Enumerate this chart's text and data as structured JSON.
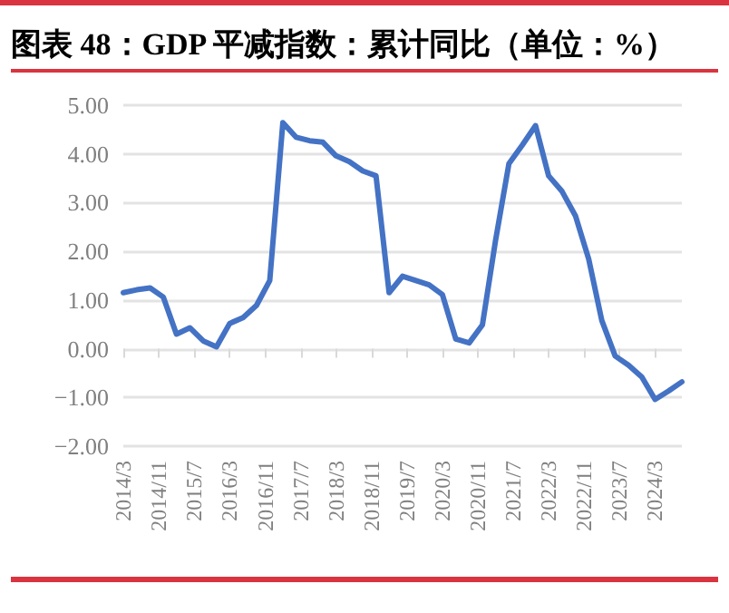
{
  "chart_data": {
    "type": "line",
    "title": "图表 48：GDP 平减指数：累计同比（单位：%）",
    "x": [
      "2014-03",
      "2014-06",
      "2014-09",
      "2014-12",
      "2015-03",
      "2015-06",
      "2015-09",
      "2015-12",
      "2016-03",
      "2016-06",
      "2016-09",
      "2016-12",
      "2017-03",
      "2017-06",
      "2017-09",
      "2017-12",
      "2018-03",
      "2018-06",
      "2018-09",
      "2018-12",
      "2019-03",
      "2019-06",
      "2019-09",
      "2019-12",
      "2020-03",
      "2020-06",
      "2020-09",
      "2020-12",
      "2021-03",
      "2021-06",
      "2021-09",
      "2021-12",
      "2022-03",
      "2022-06",
      "2022-09",
      "2022-12",
      "2023-03",
      "2023-06",
      "2023-09",
      "2023-12",
      "2024-03",
      "2024-06",
      "2024-09"
    ],
    "series": [
      {
        "color": "#4472c4",
        "values": [
          1.15,
          1.21,
          1.25,
          1.06,
          0.3,
          0.43,
          0.16,
          0.04,
          0.52,
          0.64,
          0.89,
          1.4,
          4.64,
          4.34,
          4.27,
          4.24,
          3.96,
          3.84,
          3.65,
          3.55,
          1.15,
          1.49,
          1.4,
          1.31,
          1.11,
          0.2,
          0.12,
          0.49,
          2.22,
          3.8,
          4.18,
          4.58,
          3.55,
          3.23,
          2.73,
          1.84,
          0.58,
          -0.15,
          -0.34,
          -0.58,
          -1.04,
          -0.87,
          -0.68
        ]
      }
    ],
    "xlim": [
      "2014-03",
      "2024-09"
    ],
    "xticks": [
      {
        "value": "2014-03",
        "label": "2014/3"
      },
      {
        "value": "2014-11",
        "label": "2014/11"
      },
      {
        "value": "2015-07",
        "label": "2015/7"
      },
      {
        "value": "2016-03",
        "label": "2016/3"
      },
      {
        "value": "2016-11",
        "label": "2016/11"
      },
      {
        "value": "2017-07",
        "label": "2017/7"
      },
      {
        "value": "2018-03",
        "label": "2018/3"
      },
      {
        "value": "2018-11",
        "label": "2018/11"
      },
      {
        "value": "2019-07",
        "label": "2019/7"
      },
      {
        "value": "2020-03",
        "label": "2020/3"
      },
      {
        "value": "2020-11",
        "label": "2020/11"
      },
      {
        "value": "2021-07",
        "label": "2021/7"
      },
      {
        "value": "2022-03",
        "label": "2022/3"
      },
      {
        "value": "2022-11",
        "label": "2022/11"
      },
      {
        "value": "2023-07",
        "label": "2023/7"
      },
      {
        "value": "2024-03",
        "label": "2024/3"
      }
    ],
    "ylim": [
      -2,
      5
    ],
    "yticks": [
      {
        "value": -2,
        "label": "−2.00"
      },
      {
        "value": -1,
        "label": "−1.00"
      },
      {
        "value": 0,
        "label": "0.00"
      },
      {
        "value": 1,
        "label": "1.00"
      },
      {
        "value": 2,
        "label": "2.00"
      },
      {
        "value": 3,
        "label": "3.00"
      },
      {
        "value": 4,
        "label": "4.00"
      },
      {
        "value": 5,
        "label": "5.00"
      }
    ],
    "grid": "y",
    "marker": "none",
    "line_style": "solid"
  }
}
